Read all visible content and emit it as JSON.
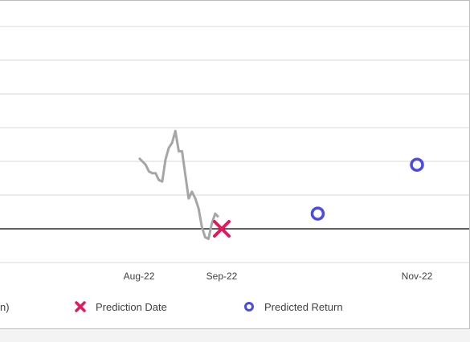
{
  "chart_data": {
    "type": "line",
    "title": "",
    "xlabel": "",
    "ylabel": "",
    "x_tick_labels": [
      "Aug-22",
      "Sep-22",
      "Nov-22"
    ],
    "grid": true,
    "legend_position": "bottom",
    "legend": [
      {
        "label": "n)",
        "marker": "line-partial",
        "color": "#a6a6a6"
      },
      {
        "label": "Prediction Date",
        "marker": "x",
        "color": "#e8175d"
      },
      {
        "label": "Predicted Return",
        "marker": "circle-open",
        "color": "#4b4be8"
      }
    ],
    "series": [
      {
        "marker": "line",
        "color": "#a6a6a6",
        "points": [
          [
            "2022-07-22",
            2.1
          ],
          [
            "2022-07-23",
            2.0
          ],
          [
            "2022-07-24",
            1.9
          ],
          [
            "2022-07-25",
            1.7
          ],
          [
            "2022-07-26",
            1.65
          ],
          [
            "2022-07-27",
            1.65
          ],
          [
            "2022-07-28",
            1.45
          ],
          [
            "2022-07-29",
            1.4
          ],
          [
            "2022-07-30",
            2.05
          ],
          [
            "2022-07-31",
            2.4
          ],
          [
            "2022-08-01",
            2.55
          ],
          [
            "2022-08-02",
            2.9
          ],
          [
            "2022-08-03",
            2.3
          ],
          [
            "2022-08-04",
            2.3
          ],
          [
            "2022-08-05",
            1.6
          ],
          [
            "2022-08-06",
            0.9
          ],
          [
            "2022-08-07",
            1.1
          ],
          [
            "2022-08-08",
            0.9
          ],
          [
            "2022-08-09",
            0.6
          ],
          [
            "2022-08-10",
            0.05
          ],
          [
            "2022-08-11",
            -0.25
          ],
          [
            "2022-08-12",
            -0.3
          ],
          [
            "2022-08-13",
            0.15
          ],
          [
            "2022-08-14",
            0.45
          ],
          [
            "2022-08-15",
            0.35
          ]
        ]
      },
      {
        "name": "Prediction Date",
        "marker": "x",
        "color": "#e8175d",
        "points": [
          [
            "2022-08-16",
            0.0
          ]
        ]
      },
      {
        "name": "Predicted Return",
        "marker": "circle-open",
        "color": "#4b4be8",
        "points": [
          [
            "2022-09-14",
            0.45
          ],
          [
            "2022-10-14",
            1.9
          ]
        ]
      }
    ],
    "baseline": 0
  }
}
